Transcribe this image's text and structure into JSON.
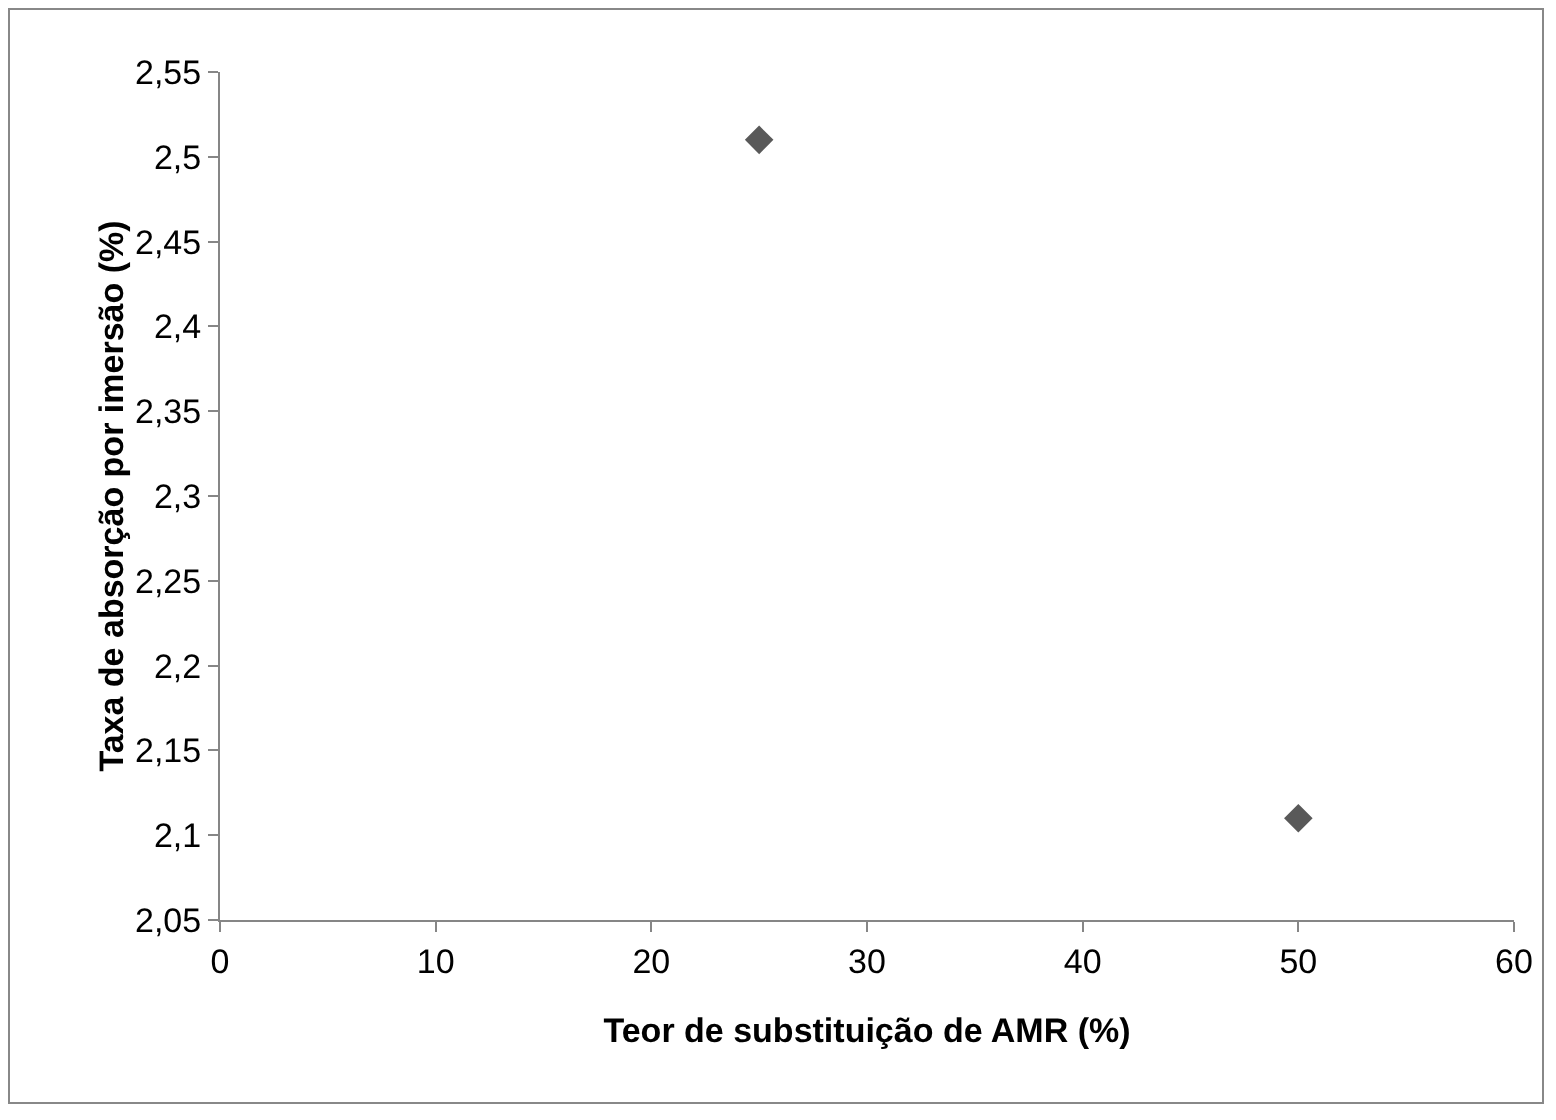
{
  "chart_data": {
    "type": "scatter",
    "xlabel": "Teor de substituição de AMR (%)",
    "ylabel": "Taxa de absorção por imersão (%)",
    "x": [
      25,
      50
    ],
    "values": [
      2.51,
      2.11
    ],
    "color": "#595959",
    "marker": "diamond",
    "grid": false,
    "legend": false,
    "xlim": [
      0,
      60
    ],
    "xticks": [
      0,
      10,
      20,
      30,
      40,
      50,
      60
    ],
    "ylim": [
      2.05,
      2.55
    ],
    "yticks": [
      {
        "value": 2.05,
        "label": "2,05"
      },
      {
        "value": 2.1,
        "label": "2,1"
      },
      {
        "value": 2.15,
        "label": "2,15"
      },
      {
        "value": 2.2,
        "label": "2,2"
      },
      {
        "value": 2.25,
        "label": "2,25"
      },
      {
        "value": 2.3,
        "label": "2,3"
      },
      {
        "value": 2.35,
        "label": "2,35"
      },
      {
        "value": 2.4,
        "label": "2,4"
      },
      {
        "value": 2.45,
        "label": "2,45"
      },
      {
        "value": 2.5,
        "label": "2,5"
      },
      {
        "value": 2.55,
        "label": "2,55"
      }
    ]
  }
}
